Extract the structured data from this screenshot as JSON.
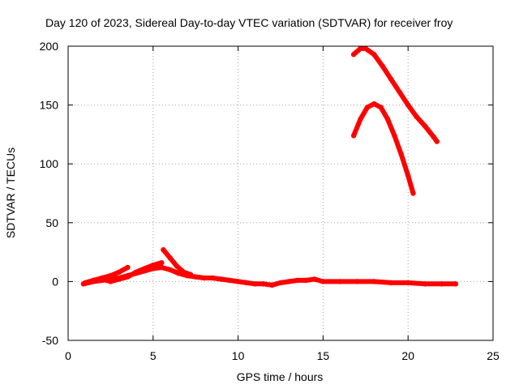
{
  "chart_data": {
    "type": "scatter",
    "title": "Day 120 of 2023, Sidereal Day-to-day VTEC variation (SDTVAR) for receiver froy",
    "xlabel": "GPS time / hours",
    "ylabel": "SDTVAR / TECUs",
    "xlim": [
      0,
      25
    ],
    "ylim": [
      -50,
      200
    ],
    "xticks": [
      0,
      5,
      10,
      15,
      20,
      25
    ],
    "yticks": [
      -50,
      0,
      50,
      100,
      150,
      200
    ],
    "grid": true,
    "legend": "none",
    "series_color": "#ff0000",
    "series": [
      {
        "x": [
          0.9,
          1.5,
          2.0,
          2.5,
          3.0,
          3.5,
          4.0,
          4.5,
          5.0,
          5.5,
          6.0,
          6.5,
          7.0,
          7.5,
          8.0,
          8.5,
          9.0,
          9.5,
          10.0,
          10.5,
          11.0,
          11.5,
          12.0,
          12.5,
          13.0,
          13.5,
          14.0,
          14.5,
          15.0,
          16.0,
          17.0,
          18.0,
          19.0,
          20.0,
          21.0,
          22.0,
          22.8
        ],
        "y": [
          -2,
          0,
          1,
          2,
          3,
          5,
          7,
          9,
          11,
          12,
          10,
          7,
          5,
          4,
          3,
          3,
          2,
          1,
          0,
          -1,
          -2,
          -2,
          -3,
          -1,
          0,
          1,
          1,
          2,
          0,
          0,
          0,
          0,
          -1,
          -1,
          -2,
          -2,
          -2
        ]
      },
      {
        "x": [
          1.0,
          1.5,
          2.0,
          2.5,
          3.0,
          3.5
        ],
        "y": [
          -1,
          1,
          3,
          5,
          8,
          12
        ]
      },
      {
        "x": [
          2.0,
          2.5,
          3.0,
          3.5,
          4.0,
          4.5,
          5.0,
          5.5
        ],
        "y": [
          2,
          0,
          2,
          4,
          8,
          11,
          14,
          16
        ]
      },
      {
        "x": [
          5.6,
          6.0,
          6.4,
          6.8,
          7.2
        ],
        "y": [
          27,
          20,
          13,
          8,
          6
        ]
      },
      {
        "x": [
          16.8,
          17.2,
          17.5,
          18.0,
          18.5,
          19.0,
          19.5,
          20.0,
          20.5,
          21.0,
          21.5,
          21.7
        ],
        "y": [
          193,
          198,
          198,
          193,
          183,
          172,
          161,
          150,
          140,
          132,
          123,
          119
        ]
      },
      {
        "x": [
          16.8,
          17.2,
          17.6,
          18.0,
          18.4,
          18.8,
          19.2,
          19.6,
          20.0,
          20.3
        ],
        "y": [
          124,
          138,
          148,
          151,
          148,
          138,
          124,
          108,
          90,
          75
        ]
      }
    ]
  }
}
